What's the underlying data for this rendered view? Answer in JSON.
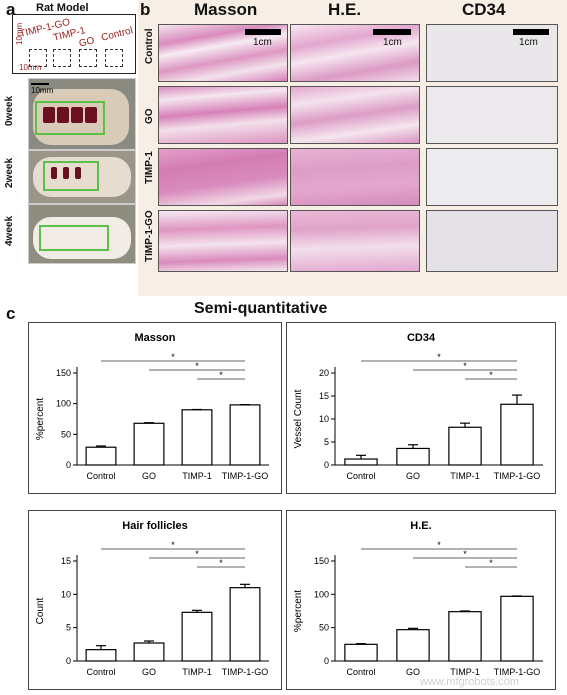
{
  "panels": {
    "a": "a",
    "b": "b",
    "c": "c"
  },
  "rat_model": {
    "title": "Rat Model",
    "labels": [
      "TIMP-1-GO",
      "TIMP-1",
      "GO",
      "Control"
    ],
    "scale_10mm_a": "10mm",
    "scale_10mm_b": "10mm",
    "photo_scale": "10mm",
    "weeks": [
      "0week",
      "2week",
      "4week"
    ]
  },
  "histology": {
    "columns": [
      "Masson",
      "H.E.",
      "CD34"
    ],
    "rows": [
      "Control",
      "GO",
      "TIMP-1",
      "TIMP-1-GO"
    ],
    "scale": "1cm"
  },
  "semi_title": "Semi-quantitative",
  "watermark": "www.mfgrobots.com",
  "colors": {
    "green_outline": "#59c246",
    "wound": "#6a1020",
    "masson_pink": "#d98bbd",
    "he_pink": "#e3a7cf",
    "cd34_grey": "#e9e7ea"
  },
  "chart_data": [
    {
      "type": "bar",
      "title": "Masson",
      "ylabel": "%percent",
      "categories": [
        "Control",
        "GO",
        "TIMP-1",
        "TIMP-1-GO"
      ],
      "values": [
        29,
        68,
        90,
        98
      ],
      "errors": [
        2,
        1,
        0.5,
        0.5
      ],
      "ylim": [
        0,
        150
      ],
      "yticks": [
        "0",
        "50",
        "100",
        "150"
      ],
      "ytick_values": [
        0,
        50,
        100,
        150
      ],
      "sig": [
        {
          "from": 0,
          "to": 3,
          "label": "*"
        },
        {
          "from": 1,
          "to": 3,
          "label": "*"
        },
        {
          "from": 2,
          "to": 3,
          "label": "*"
        }
      ]
    },
    {
      "type": "bar",
      "title": "CD34",
      "ylabel": "Vessel Count",
      "categories": [
        "Control",
        "GO",
        "TIMP-1",
        "TIMP-1-GO"
      ],
      "values": [
        1.3,
        3.6,
        8.2,
        13.2
      ],
      "errors": [
        0.8,
        0.8,
        0.9,
        2.0
      ],
      "ylim": [
        0,
        20
      ],
      "yticks": [
        "0",
        "5",
        "10",
        "15",
        "20"
      ],
      "ytick_values": [
        0,
        5,
        10,
        15,
        20
      ],
      "sig": [
        {
          "from": 0,
          "to": 3,
          "label": "*"
        },
        {
          "from": 1,
          "to": 3,
          "label": "*"
        },
        {
          "from": 2,
          "to": 3,
          "label": "*"
        }
      ]
    },
    {
      "type": "bar",
      "title": "Hair follicles",
      "ylabel": "Count",
      "categories": [
        "Control",
        "GO",
        "TIMP-1",
        "TIMP-1-GO"
      ],
      "values": [
        1.7,
        2.7,
        7.3,
        11.0
      ],
      "errors": [
        0.6,
        0.3,
        0.3,
        0.5
      ],
      "ylim": [
        0,
        15
      ],
      "yticks": [
        "0",
        "5",
        "10",
        "15"
      ],
      "ytick_values": [
        0,
        5,
        10,
        15
      ],
      "sig": [
        {
          "from": 0,
          "to": 3,
          "label": "*"
        },
        {
          "from": 1,
          "to": 3,
          "label": "*"
        },
        {
          "from": 2,
          "to": 3,
          "label": "*"
        }
      ]
    },
    {
      "type": "bar",
      "title": "H.E.",
      "ylabel": "%percent",
      "categories": [
        "Control",
        "GO",
        "TIMP-1",
        "TIMP-1-GO"
      ],
      "values": [
        25,
        47,
        74,
        97
      ],
      "errors": [
        1,
        2,
        1,
        0.5
      ],
      "ylim": [
        0,
        150
      ],
      "yticks": [
        "0",
        "50",
        "100",
        "150"
      ],
      "ytick_values": [
        0,
        50,
        100,
        150
      ],
      "sig": [
        {
          "from": 0,
          "to": 3,
          "label": "*"
        },
        {
          "from": 1,
          "to": 3,
          "label": "*"
        },
        {
          "from": 2,
          "to": 3,
          "label": "*"
        }
      ]
    }
  ]
}
